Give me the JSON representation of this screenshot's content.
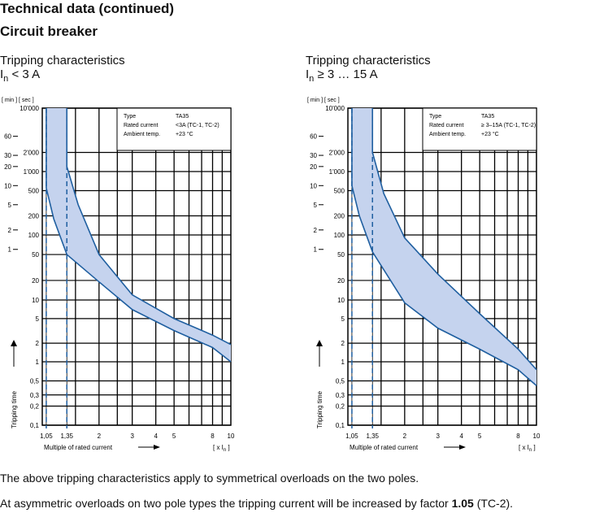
{
  "heading": "Technical data (continued)",
  "subheading": "Circuit breaker",
  "axis": {
    "units_top": "[ min ] [ sec ]",
    "ylabel": "Tripping time",
    "xlabel": "Multiple of rated current",
    "xunit": "[ x I",
    "xunit_sub": "n",
    "xunit_end": " ]",
    "sec_ticks": [
      "10'000",
      "2'000",
      "1'000",
      "500",
      "200",
      "100",
      "50",
      "20",
      "10",
      "5",
      "2",
      "1",
      "0,5",
      "0,3",
      "0,2",
      "0,1"
    ],
    "min_ticks": [
      "60",
      "30",
      "20",
      "10",
      "5",
      "2",
      "1"
    ],
    "x_ticks": [
      "1,05",
      "1,35",
      "2",
      "3",
      "4",
      "5",
      "8",
      "10"
    ]
  },
  "info_labels": {
    "type": "Type",
    "rated": "Rated current",
    "ambient": "Ambient temp."
  },
  "chart_data": [
    {
      "type": "area",
      "title_main": "Tripping characteristics",
      "title_sym": "I",
      "title_sub": "n",
      "title_rest": " < 3 A",
      "info": {
        "type": "TA35",
        "rated": "<3A (TC-1, TC-2)",
        "ambient": "+23 °C"
      },
      "xscale": "log",
      "yscale": "log",
      "xlim": [
        1,
        10
      ],
      "ylim": [
        0.1,
        10000
      ],
      "band_lower": [
        [
          1.05,
          550
        ],
        [
          1.15,
          180
        ],
        [
          1.35,
          50
        ],
        [
          2,
          19
        ],
        [
          3,
          7
        ],
        [
          5,
          3.2
        ],
        [
          8,
          1.7
        ],
        [
          10,
          1.0
        ]
      ],
      "band_upper": [
        [
          1.35,
          1200
        ],
        [
          1.55,
          300
        ],
        [
          2,
          50
        ],
        [
          3,
          12
        ],
        [
          5,
          5
        ],
        [
          8,
          2.7
        ],
        [
          10,
          1.9
        ]
      ],
      "dashed_x": [
        1.05,
        1.35
      ]
    },
    {
      "type": "area",
      "title_main": "Tripping characteristics",
      "title_sym": "I",
      "title_sub": "n",
      "title_rest": " ≥ 3 … 15 A",
      "info": {
        "type": "TA35",
        "rated": "≥ 3–15A (TC-1, TC-2)",
        "ambient": "+23 °C"
      },
      "xscale": "log",
      "yscale": "log",
      "xlim": [
        1,
        10
      ],
      "ylim": [
        0.1,
        10000
      ],
      "band_lower": [
        [
          1.05,
          600
        ],
        [
          1.15,
          200
        ],
        [
          1.35,
          55
        ],
        [
          2,
          9
        ],
        [
          3,
          3.5
        ],
        [
          5,
          1.6
        ],
        [
          8,
          0.75
        ],
        [
          10,
          0.42
        ]
      ],
      "band_upper": [
        [
          1.35,
          2000
        ],
        [
          1.55,
          450
        ],
        [
          2,
          90
        ],
        [
          3,
          25
        ],
        [
          5,
          6
        ],
        [
          8,
          1.6
        ],
        [
          10,
          0.75
        ]
      ],
      "dashed_x": [
        1.05,
        1.35
      ]
    }
  ],
  "footer": {
    "line1": "The above tripping characteristics apply to symmetrical overloads on the two poles.",
    "line2_a": "At asymmetric overloads on two pole types the tripping current will be increased by factor ",
    "line2_b": "1.05",
    "line2_c": " (TC-2)."
  }
}
